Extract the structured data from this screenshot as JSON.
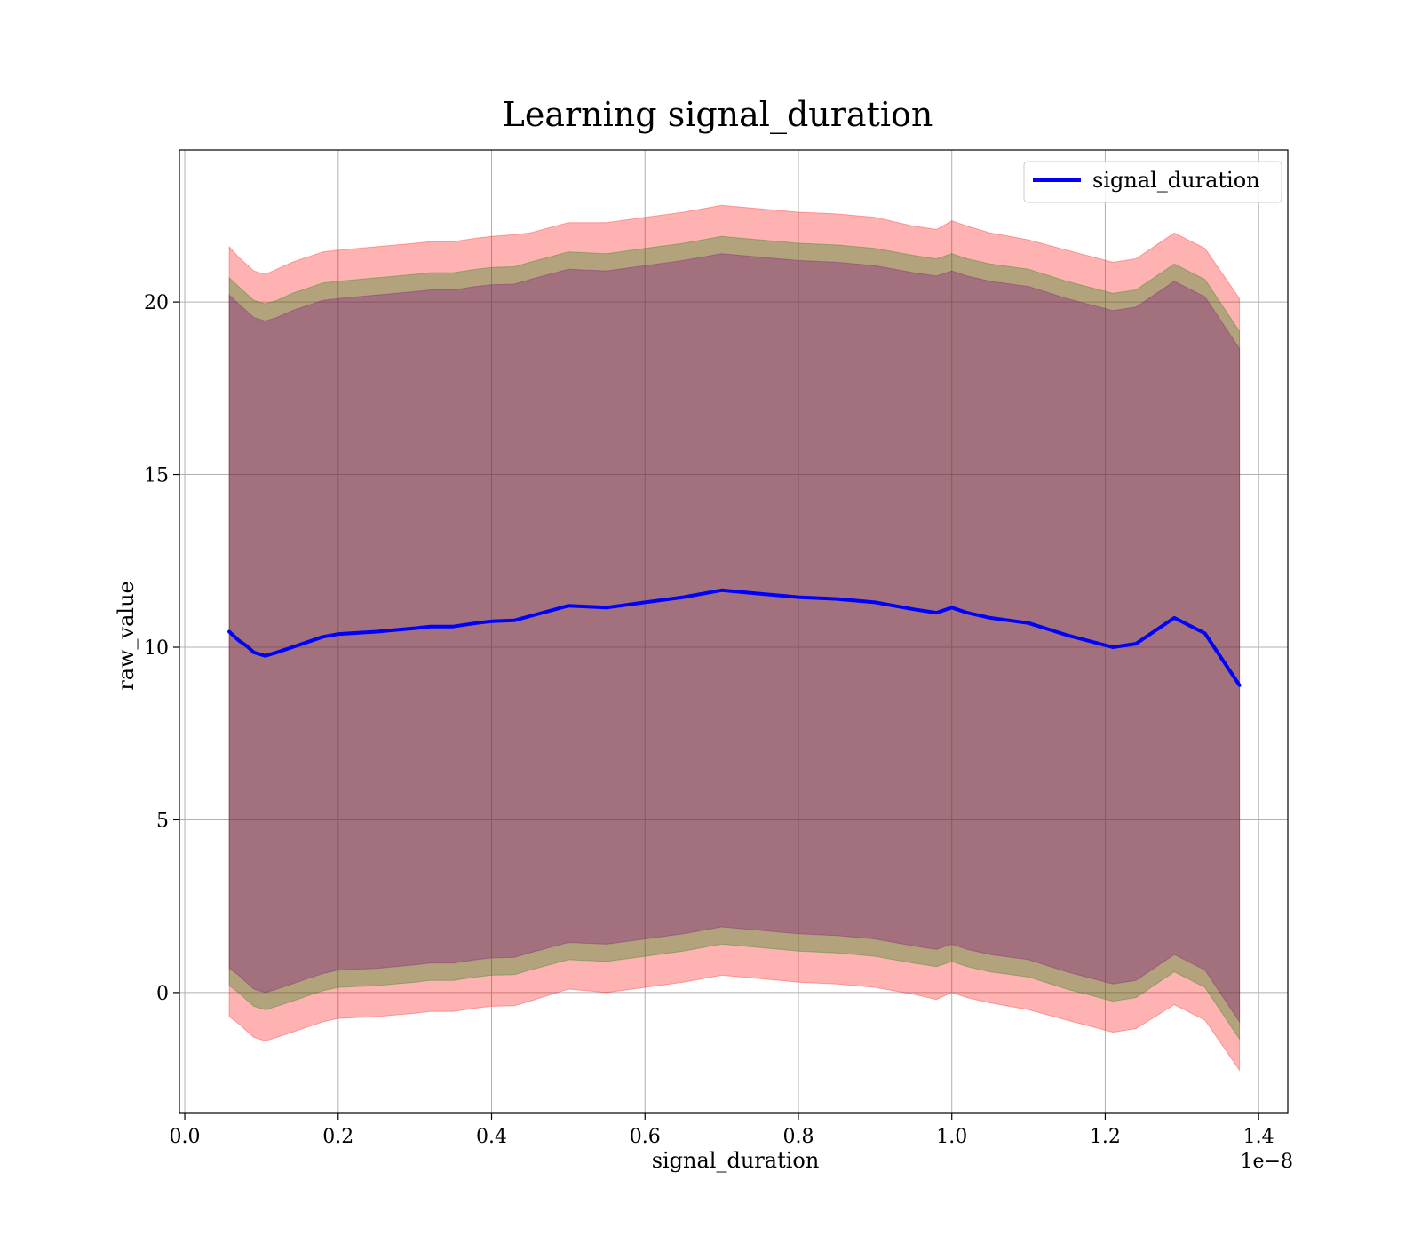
{
  "chart_data": {
    "type": "line",
    "title": "Learning signal_duration",
    "xlabel": "signal_duration",
    "ylabel": "raw_value",
    "x_offset_text": "1e−8",
    "xlim": [
      -0.007,
      1.438
    ],
    "ylim": [
      -3.5,
      24.4
    ],
    "x_ticks": [
      0.0,
      0.2,
      0.4,
      0.6,
      0.8,
      1.0,
      1.2,
      1.4
    ],
    "x_tick_labels": [
      "0.0",
      "0.2",
      "0.4",
      "0.6",
      "0.8",
      "1.0",
      "1.2",
      "1.4"
    ],
    "y_ticks": [
      0,
      5,
      10,
      15,
      20
    ],
    "y_tick_labels": [
      "0",
      "5",
      "10",
      "15",
      "20"
    ],
    "grid": true,
    "legend_position": "top-right",
    "series": [
      {
        "name": "signal_duration",
        "color": "#0000ff",
        "x": [
          0.058,
          0.07,
          0.08,
          0.09,
          0.105,
          0.12,
          0.14,
          0.16,
          0.18,
          0.2,
          0.25,
          0.3,
          0.32,
          0.35,
          0.38,
          0.4,
          0.43,
          0.45,
          0.5,
          0.55,
          0.6,
          0.65,
          0.7,
          0.75,
          0.8,
          0.85,
          0.9,
          0.95,
          0.98,
          1.0,
          1.02,
          1.05,
          1.1,
          1.15,
          1.21,
          1.24,
          1.29,
          1.33,
          1.375
        ],
        "y": [
          10.45,
          10.2,
          10.05,
          9.85,
          9.75,
          9.85,
          10.0,
          10.15,
          10.3,
          10.38,
          10.45,
          10.55,
          10.6,
          10.6,
          10.7,
          10.75,
          10.78,
          10.9,
          11.2,
          11.15,
          11.3,
          11.45,
          11.65,
          11.55,
          11.45,
          11.4,
          11.3,
          11.1,
          11.0,
          11.15,
          11.0,
          10.85,
          10.7,
          10.35,
          10.0,
          10.1,
          10.85,
          10.4,
          8.9
        ]
      }
    ],
    "bands": [
      {
        "color": "#ff0000",
        "opacity": 0.3,
        "x": [
          0.058,
          0.07,
          0.08,
          0.09,
          0.105,
          0.12,
          0.14,
          0.16,
          0.18,
          0.2,
          0.25,
          0.3,
          0.32,
          0.35,
          0.38,
          0.4,
          0.43,
          0.45,
          0.5,
          0.55,
          0.6,
          0.65,
          0.7,
          0.75,
          0.8,
          0.85,
          0.9,
          0.95,
          0.98,
          1.0,
          1.02,
          1.05,
          1.1,
          1.15,
          1.21,
          1.24,
          1.29,
          1.33,
          1.375
        ],
        "upper": [
          21.6,
          21.3,
          21.1,
          20.9,
          20.8,
          20.95,
          21.15,
          21.3,
          21.45,
          21.5,
          21.6,
          21.7,
          21.75,
          21.75,
          21.85,
          21.9,
          21.95,
          22.0,
          22.3,
          22.3,
          22.45,
          22.6,
          22.8,
          22.7,
          22.6,
          22.55,
          22.45,
          22.2,
          22.1,
          22.35,
          22.2,
          22.0,
          21.8,
          21.5,
          21.15,
          21.25,
          22.0,
          21.55,
          20.1
        ],
        "lower": [
          -0.7,
          -0.9,
          -1.1,
          -1.3,
          -1.4,
          -1.3,
          -1.15,
          -1.0,
          -0.85,
          -0.75,
          -0.7,
          -0.6,
          -0.55,
          -0.55,
          -0.45,
          -0.4,
          -0.38,
          -0.25,
          0.1,
          0.0,
          0.15,
          0.3,
          0.5,
          0.4,
          0.3,
          0.25,
          0.15,
          -0.05,
          -0.2,
          0.0,
          -0.15,
          -0.3,
          -0.5,
          -0.8,
          -1.15,
          -1.05,
          -0.35,
          -0.8,
          -2.25
        ]
      },
      {
        "color": "#008000",
        "opacity": 0.3,
        "x": [
          0.058,
          0.07,
          0.08,
          0.09,
          0.105,
          0.12,
          0.14,
          0.16,
          0.18,
          0.2,
          0.25,
          0.3,
          0.32,
          0.35,
          0.38,
          0.4,
          0.43,
          0.45,
          0.5,
          0.55,
          0.6,
          0.65,
          0.7,
          0.75,
          0.8,
          0.85,
          0.9,
          0.95,
          0.98,
          1.0,
          1.02,
          1.05,
          1.1,
          1.15,
          1.21,
          1.24,
          1.29,
          1.33,
          1.375
        ],
        "upper": [
          20.7,
          20.45,
          20.25,
          20.05,
          19.95,
          20.05,
          20.25,
          20.4,
          20.55,
          20.6,
          20.7,
          20.8,
          20.85,
          20.85,
          20.95,
          21.0,
          21.02,
          21.15,
          21.45,
          21.4,
          21.55,
          21.7,
          21.9,
          21.8,
          21.7,
          21.65,
          21.55,
          21.35,
          21.25,
          21.4,
          21.25,
          21.1,
          20.95,
          20.6,
          20.25,
          20.35,
          21.1,
          20.65,
          19.15
        ],
        "lower": [
          0.2,
          0.0,
          -0.2,
          -0.4,
          -0.5,
          -0.4,
          -0.25,
          -0.1,
          0.05,
          0.15,
          0.2,
          0.3,
          0.35,
          0.35,
          0.45,
          0.5,
          0.52,
          0.65,
          0.95,
          0.9,
          1.05,
          1.2,
          1.4,
          1.3,
          1.2,
          1.15,
          1.05,
          0.85,
          0.75,
          0.9,
          0.75,
          0.6,
          0.45,
          0.1,
          -0.25,
          -0.15,
          0.6,
          0.15,
          -1.35
        ]
      },
      {
        "color": "#800080",
        "opacity": 0.3,
        "x": [
          0.058,
          0.07,
          0.08,
          0.09,
          0.105,
          0.12,
          0.14,
          0.16,
          0.18,
          0.2,
          0.25,
          0.3,
          0.32,
          0.35,
          0.38,
          0.4,
          0.43,
          0.45,
          0.5,
          0.55,
          0.6,
          0.65,
          0.7,
          0.75,
          0.8,
          0.85,
          0.9,
          0.95,
          0.98,
          1.0,
          1.02,
          1.05,
          1.1,
          1.15,
          1.21,
          1.24,
          1.29,
          1.33,
          1.375
        ],
        "upper": [
          20.2,
          19.95,
          19.75,
          19.55,
          19.45,
          19.55,
          19.75,
          19.9,
          20.05,
          20.1,
          20.2,
          20.3,
          20.35,
          20.35,
          20.45,
          20.5,
          20.52,
          20.65,
          20.95,
          20.9,
          21.05,
          21.2,
          21.4,
          21.3,
          21.2,
          21.15,
          21.05,
          20.85,
          20.75,
          20.9,
          20.75,
          20.6,
          20.45,
          20.1,
          19.75,
          19.85,
          20.6,
          20.15,
          18.65
        ],
        "lower": [
          0.7,
          0.5,
          0.3,
          0.1,
          0.0,
          0.1,
          0.25,
          0.4,
          0.55,
          0.65,
          0.7,
          0.8,
          0.85,
          0.85,
          0.95,
          1.0,
          1.02,
          1.15,
          1.45,
          1.4,
          1.55,
          1.7,
          1.9,
          1.8,
          1.7,
          1.65,
          1.55,
          1.35,
          1.25,
          1.4,
          1.25,
          1.1,
          0.95,
          0.6,
          0.25,
          0.35,
          1.1,
          0.65,
          -0.85
        ]
      }
    ]
  }
}
